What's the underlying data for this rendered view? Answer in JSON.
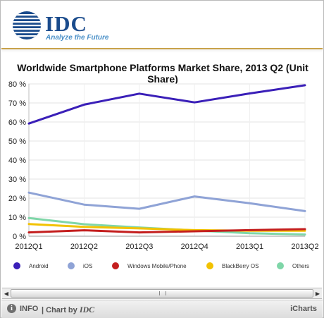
{
  "header": {
    "logo_word": "IDC",
    "logo_tagline": "Analyze the Future"
  },
  "chart_data": {
    "type": "line",
    "title": "Worldwide Smartphone Platforms Market Share, 2013 Q2 (Unit Share)",
    "categories": [
      "2012Q1",
      "2012Q2",
      "2012Q3",
      "2012Q4",
      "2013Q1",
      "2013Q2"
    ],
    "ylim": [
      0,
      80
    ],
    "yticks": [
      0,
      10,
      20,
      30,
      40,
      50,
      60,
      70,
      80
    ],
    "ytick_suffix": " %",
    "grid": true,
    "legend_position": "bottom",
    "series": [
      {
        "name": "Android",
        "color": "#3a1fb8",
        "values": [
          59.2,
          69.1,
          74.9,
          70.3,
          75.0,
          79.3
        ]
      },
      {
        "name": "iOS",
        "color": "#8fa3d6",
        "values": [
          22.9,
          16.6,
          14.4,
          20.9,
          17.3,
          13.2
        ]
      },
      {
        "name": "Windows Mobile/Phone",
        "color": "#c41e1e",
        "values": [
          2.0,
          3.1,
          2.0,
          2.6,
          3.2,
          3.7
        ]
      },
      {
        "name": "BlackBerry OS",
        "color": "#f2c200",
        "values": [
          6.4,
          4.9,
          4.1,
          3.2,
          2.9,
          2.9
        ]
      },
      {
        "name": "Others",
        "color": "#7fd6a8",
        "values": [
          9.5,
          6.3,
          4.6,
          3.0,
          1.6,
          0.9
        ]
      }
    ]
  },
  "scrollbar": {
    "left_arrow": "◀",
    "right_arrow": "▶"
  },
  "footer": {
    "info_icon": "i",
    "info_label": "INFO",
    "chart_by_prefix": "| Chart by",
    "chart_by_brand": "IDC",
    "icharts_label": "iCharts"
  }
}
